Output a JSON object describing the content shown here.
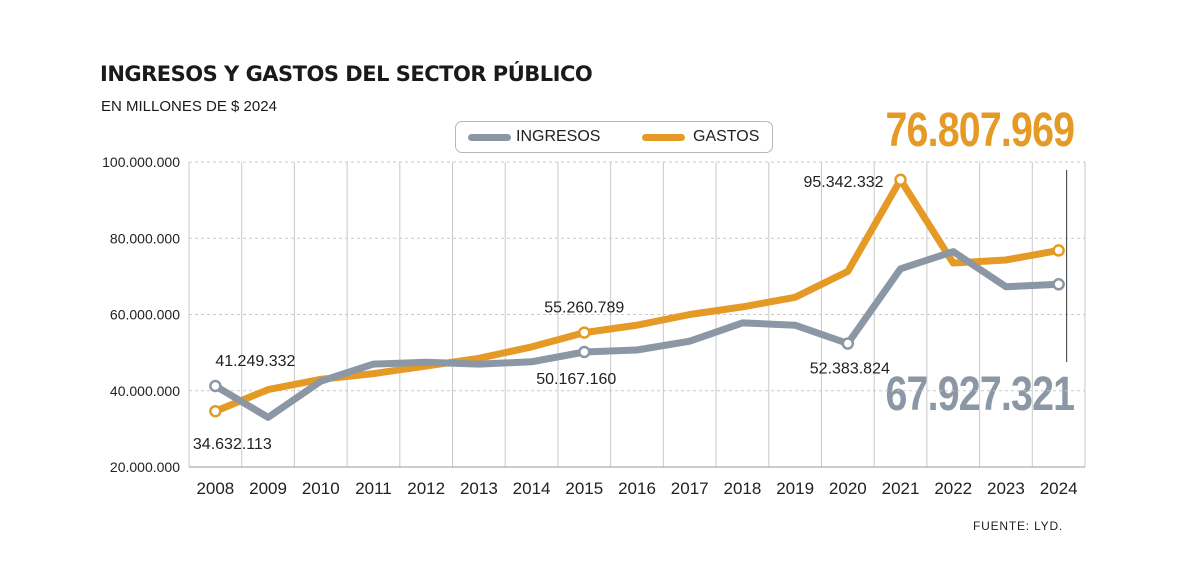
{
  "title": "INGRESOS Y GASTOS DEL SECTOR PÚBLICO",
  "subtitle": "EN MILLONES DE $ 2024",
  "source": "FUENTE: LYD.",
  "legend": {
    "ingresos": "INGRESOS",
    "gastos": "GASTOS"
  },
  "highlight": {
    "gastos": "76.807.969",
    "ingresos": "67.927.321"
  },
  "colors": {
    "ingresos": "#8c97a5",
    "gastos": "#e49a25",
    "grid": "#c9c9c9"
  },
  "chart_data": {
    "type": "line",
    "title": "INGRESOS Y GASTOS DEL SECTOR PÚBLICO",
    "subtitle": "EN MILLONES DE $ 2024",
    "x": [
      "2008",
      "2009",
      "2010",
      "2011",
      "2012",
      "2013",
      "2014",
      "2015",
      "2016",
      "2017",
      "2018",
      "2019",
      "2020",
      "2021",
      "2022",
      "2023",
      "2024"
    ],
    "ylim": [
      20000000,
      100000000
    ],
    "yticks": [
      20000000,
      40000000,
      60000000,
      80000000,
      100000000
    ],
    "ytick_labels": [
      "20.000.000",
      "40.000.000",
      "60.000.000",
      "80.000.000",
      "100.000.000"
    ],
    "grid": true,
    "legend_position": "top-center",
    "series": [
      {
        "name": "INGRESOS",
        "color": "#8c97a5",
        "values": [
          41249332,
          33000000,
          42500000,
          47000000,
          47500000,
          47000000,
          47600000,
          50167160,
          50700000,
          53000000,
          57800000,
          57200000,
          52383824,
          72000000,
          76500000,
          67300000,
          67927321
        ]
      },
      {
        "name": "GASTOS",
        "color": "#e49a25",
        "values": [
          34632113,
          40300000,
          43000000,
          44500000,
          46500000,
          48500000,
          51500000,
          55260789,
          57200000,
          60000000,
          62000000,
          64500000,
          71300000,
          95342332,
          73500000,
          74300000,
          76807969
        ]
      }
    ],
    "annotations": [
      {
        "series": "INGRESOS",
        "x": "2008",
        "text": "41.249.332"
      },
      {
        "series": "GASTOS",
        "x": "2008",
        "text": "34.632.113"
      },
      {
        "series": "GASTOS",
        "x": "2015",
        "text": "55.260.789"
      },
      {
        "series": "INGRESOS",
        "x": "2015",
        "text": "50.167.160"
      },
      {
        "series": "GASTOS",
        "x": "2021",
        "text": "95.342.332"
      },
      {
        "series": "INGRESOS",
        "x": "2020",
        "text": "52.383.824"
      }
    ]
  }
}
